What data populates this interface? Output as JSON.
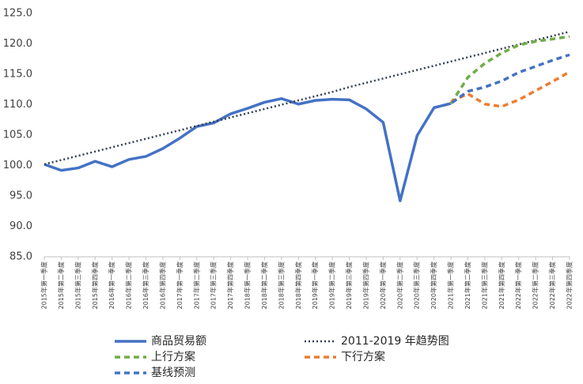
{
  "chart_data": {
    "type": "line",
    "categories": [
      "2015年第一季度",
      "2015年第二季度",
      "2015年第三季度",
      "2015年第四季度",
      "2016年第一季度",
      "2016年第二季度",
      "2016年第三季度",
      "2016年第四季度",
      "2017年第一季度",
      "2017年第二季度",
      "2017年第三季度",
      "2017年第四季度",
      "2018年第一季度",
      "2018年第二季度",
      "2018年第三季度",
      "2018年第四季度",
      "2019年第一季度",
      "2019年第二季度",
      "2019年第三季度",
      "2019年第四季度",
      "2020年第一季度",
      "2020年第二季度",
      "2020年第三季度",
      "2020年第四季度",
      "2021年第一季度",
      "2021年第二季度",
      "2021年第三季度",
      "2021年第四季度",
      "2022年第一季度",
      "2022年第二季度",
      "2022年第三季度",
      "2022年第四季度"
    ],
    "series": [
      {
        "name": "商品贸易额",
        "color": "#4472c4",
        "style": "solid",
        "values": [
          100.2,
          99.2,
          99.6,
          100.7,
          99.8,
          101.0,
          101.5,
          102.8,
          104.5,
          106.4,
          107.0,
          108.5,
          109.4,
          110.4,
          111.0,
          110.1,
          110.7,
          110.9,
          110.8,
          109.3,
          107.1,
          94.2,
          104.9,
          109.5,
          110.2,
          null,
          null,
          null,
          null,
          null,
          null,
          null
        ]
      },
      {
        "name": "2011-2019 年趋势图",
        "color": "#333f50",
        "style": "dotted",
        "values": [
          100.2,
          100.9,
          101.6,
          102.3,
          103.0,
          103.7,
          104.4,
          105.1,
          105.8,
          106.5,
          107.2,
          107.9,
          108.6,
          109.3,
          110.0,
          110.7,
          111.4,
          112.1,
          112.9,
          113.6,
          114.3,
          115.0,
          115.7,
          116.4,
          117.1,
          117.8,
          118.5,
          119.2,
          119.9,
          120.6,
          121.3,
          122.0
        ]
      },
      {
        "name": "上行方案",
        "color": "#70ad47",
        "style": "dashed",
        "values": [
          null,
          null,
          null,
          null,
          null,
          null,
          null,
          null,
          null,
          null,
          null,
          null,
          null,
          null,
          null,
          null,
          null,
          null,
          null,
          null,
          null,
          null,
          null,
          null,
          110.2,
          114.5,
          116.8,
          118.5,
          119.8,
          120.4,
          120.8,
          121.2
        ]
      },
      {
        "name": "下行方案",
        "color": "#ed7d31",
        "style": "dashed",
        "values": [
          null,
          null,
          null,
          null,
          null,
          null,
          null,
          null,
          null,
          null,
          null,
          null,
          null,
          null,
          null,
          null,
          null,
          null,
          null,
          null,
          null,
          null,
          null,
          null,
          110.5,
          111.8,
          110.1,
          109.7,
          110.8,
          112.3,
          113.8,
          115.4
        ]
      },
      {
        "name": "基线预测",
        "color": "#4472c4",
        "style": "dashed",
        "values": [
          null,
          null,
          null,
          null,
          null,
          null,
          null,
          null,
          null,
          null,
          null,
          null,
          null,
          null,
          null,
          null,
          null,
          null,
          null,
          null,
          null,
          null,
          null,
          109.5,
          110.2,
          112.2,
          112.9,
          113.9,
          115.3,
          116.3,
          117.3,
          118.2
        ]
      }
    ],
    "ylim": [
      85,
      125
    ],
    "yticks": [
      {
        "value": 85,
        "label": "85.0"
      },
      {
        "value": 90,
        "label": "90.0"
      },
      {
        "value": 95,
        "label": "95.0"
      },
      {
        "value": 100,
        "label": "100.0"
      },
      {
        "value": 105,
        "label": "105.0"
      },
      {
        "value": 110,
        "label": "110.0"
      },
      {
        "value": 115,
        "label": "115.0"
      },
      {
        "value": 120,
        "label": "120.0"
      },
      {
        "value": 125,
        "label": "125.0"
      }
    ],
    "grid": false
  }
}
